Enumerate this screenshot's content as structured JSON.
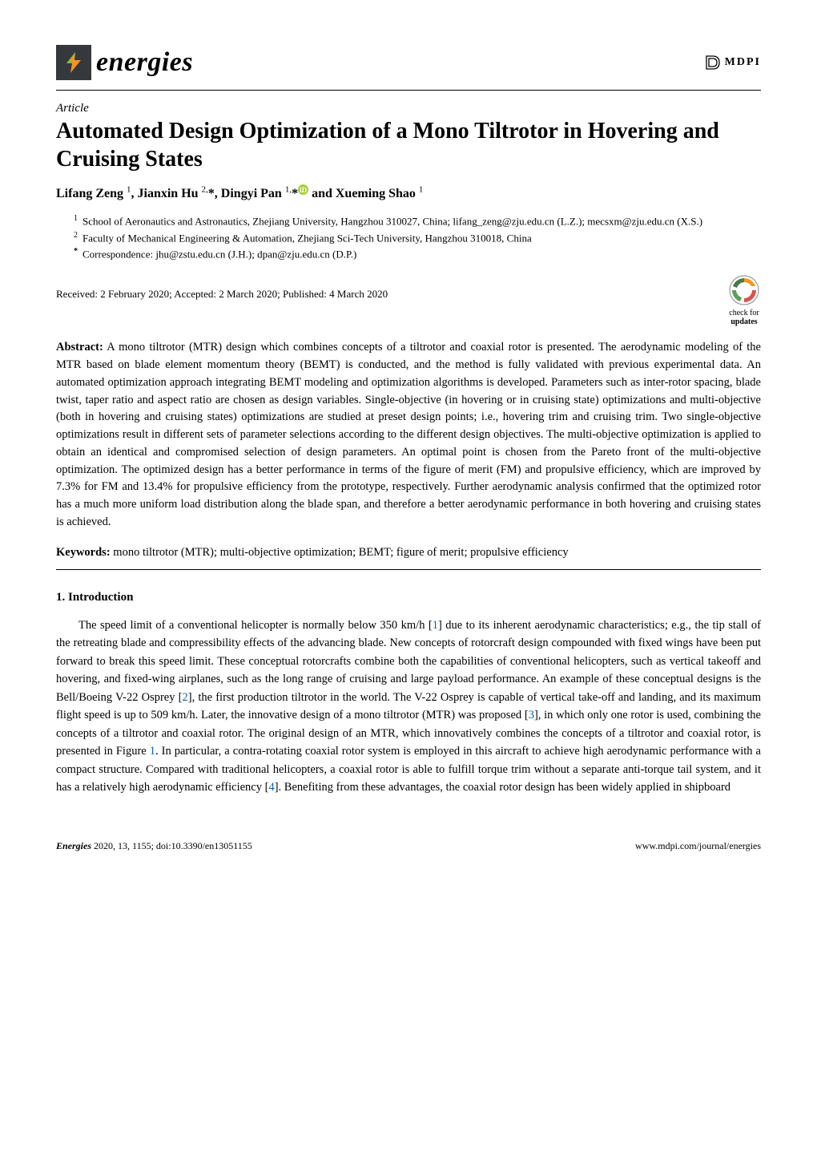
{
  "journal": {
    "name": "energies",
    "publisher": "MDPI"
  },
  "article": {
    "label": "Article",
    "title": "Automated Design Optimization of a Mono Tiltrotor in Hovering and Cruising States",
    "authors_html": "Lifang Zeng <sup>1</sup>, Jianxin Hu <sup>2,</sup>*, Dingyi Pan <sup>1,</sup>*",
    "authors_tail": " and Xueming Shao <sup>1</sup>",
    "affiliations": [
      {
        "num": "1",
        "text": "School of Aeronautics and Astronautics, Zhejiang University, Hangzhou 310027, China; lifang_zeng@zju.edu.cn (L.Z.); mecsxm@zju.edu.cn (X.S.)"
      },
      {
        "num": "2",
        "text": "Faculty of Mechanical Engineering & Automation, Zhejiang Sci-Tech University, Hangzhou 310018, China"
      },
      {
        "num": "*",
        "text": "Correspondence: jhu@zstu.edu.cn (J.H.); dpan@zju.edu.cn (D.P.)",
        "bold": true
      }
    ],
    "received": "Received: 2 February 2020; Accepted: 2 March 2020; Published: 4 March 2020",
    "check_updates_top": "check for",
    "check_updates_bottom": "updates",
    "abstract_label": "Abstract:",
    "abstract": "A mono tiltrotor (MTR) design which combines concepts of a tiltrotor and coaxial rotor is presented. The aerodynamic modeling of the MTR based on blade element momentum theory (BEMT) is conducted, and the method is fully validated with previous experimental data. An automated optimization approach integrating BEMT modeling and optimization algorithms is developed. Parameters such as inter-rotor spacing, blade twist, taper ratio and aspect ratio are chosen as design variables. Single-objective (in hovering or in cruising state) optimizations and multi-objective (both in hovering and cruising states) optimizations are studied at preset design points; i.e., hovering trim and cruising trim. Two single-objective optimizations result in different sets of parameter selections according to the different design objectives. The multi-objective optimization is applied to obtain an identical and compromised selection of design parameters. An optimal point is chosen from the Pareto front of the multi-objective optimization. The optimized design has a better performance in terms of the figure of merit (FM) and propulsive efficiency, which are improved by 7.3% for FM and 13.4% for propulsive efficiency from the prototype, respectively. Further aerodynamic analysis confirmed that the optimized rotor has a much more uniform load distribution along the blade span, and therefore a better aerodynamic performance in both hovering and cruising states is achieved.",
    "keywords_label": "Keywords:",
    "keywords": "mono tiltrotor (MTR); multi-objective optimization; BEMT; figure of merit; propulsive efficiency",
    "section1_heading": "1. Introduction",
    "intro": "The speed limit of a conventional helicopter is normally below 350 km/h [1] due to its inherent aerodynamic characteristics; e.g., the tip stall of the retreating blade and compressibility effects of the advancing blade. New concepts of rotorcraft design compounded with fixed wings have been put forward to break this speed limit. These conceptual rotorcrafts combine both the capabilities of conventional helicopters, such as vertical takeoff and hovering, and fixed-wing airplanes, such as the long range of cruising and large payload performance. An example of these conceptual designs is the Bell/Boeing V-22 Osprey [2], the first production tiltrotor in the world. The V-22 Osprey is capable of vertical take-off and landing, and its maximum flight speed is up to 509 km/h. Later, the innovative design of a mono tiltrotor (MTR) was proposed [3], in which only one rotor is used, combining the concepts of a tiltrotor and coaxial rotor. The original design of an MTR, which innovatively combines the concepts of a tiltrotor and coaxial rotor, is presented in Figure 1. In particular, a contra-rotating coaxial rotor system is employed in this aircraft to achieve high aerodynamic performance with a compact structure. Compared with traditional helicopters, a coaxial rotor is able to fulfill torque trim without a separate anti-torque tail system, and it has a relatively high aerodynamic efficiency [4]. Benefiting from these advantages, the coaxial rotor design has been widely applied in shipboard",
    "ref_color": "#0066b3"
  },
  "footer": {
    "left_italic": "Energies",
    "left_rest": " 2020, 13, 1155; doi:10.3390/en13051155",
    "right": "www.mdpi.com/journal/energies"
  },
  "colors": {
    "logo_bg": "#35383c",
    "bolt_orange": "#f7941e",
    "bolt_green": "#7ac043",
    "orcid": "#a6ce39",
    "check_orange": "#f7941e",
    "check_red": "#d9534f"
  }
}
